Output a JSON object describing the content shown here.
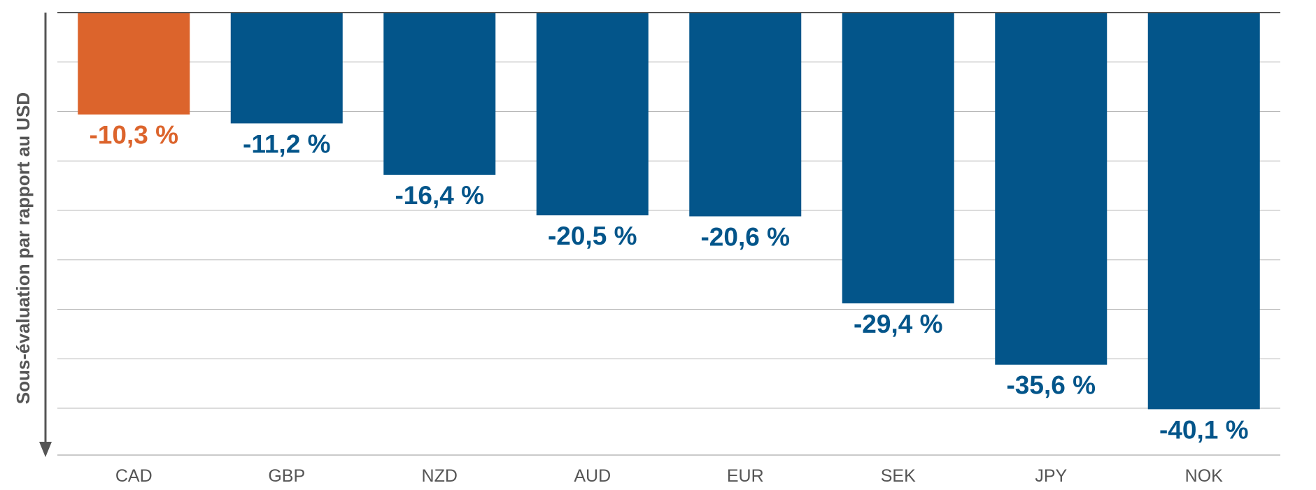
{
  "chart_data": {
    "type": "bar",
    "title": "",
    "xlabel": "",
    "ylabel": "Sous-évaluation par rapport au USD",
    "categories": [
      "CAD",
      "GBP",
      "NZD",
      "AUD",
      "EUR",
      "SEK",
      "JPY",
      "NOK"
    ],
    "values": [
      -10.3,
      -11.2,
      -16.4,
      -20.5,
      -20.6,
      -29.4,
      -35.6,
      -40.1
    ],
    "value_labels": [
      "-10,3 %",
      "-11,2 %",
      "-16,4 %",
      "-20,5 %",
      "-20,6 %",
      "-29,4 %",
      "-35,6 %",
      "-40,1 %"
    ],
    "highlight_category": "CAD",
    "ylim": [
      -45,
      0
    ],
    "grid": true,
    "legend": "none"
  },
  "colors": {
    "primary_bar": "#03558a",
    "highlight_bar": "#dc642c",
    "gridline": "#b8b8b8",
    "axis": "#555555",
    "category_text": "#555555",
    "axis_title_text": "#555555"
  }
}
